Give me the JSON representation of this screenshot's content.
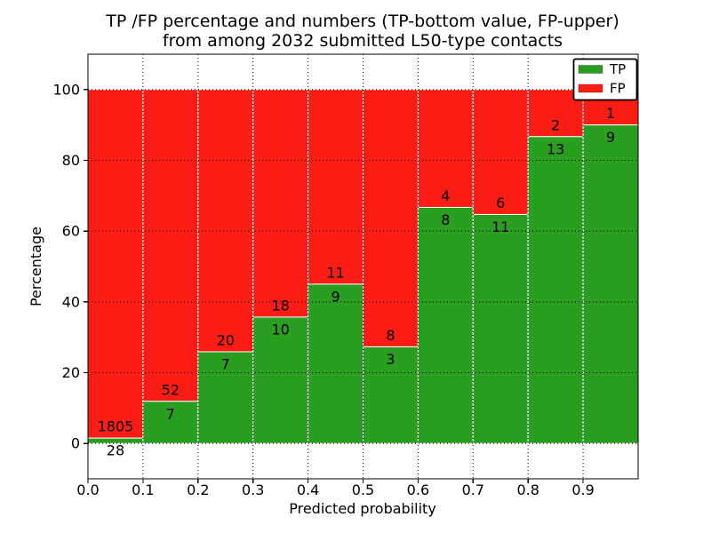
{
  "chart_data": {
    "type": "bar",
    "stacked": true,
    "title_lines": [
      "TP /FP percentage and numbers (TP-bottom value, FP-upper)",
      "from among 2032 submitted L50-type contacts"
    ],
    "xlabel": "Predicted probability",
    "ylabel": "Percentage",
    "xlim": [
      0.0,
      1.0
    ],
    "ylim": [
      -10,
      110
    ],
    "x_tick_labels": [
      "0.0",
      "0.1",
      "0.2",
      "0.3",
      "0.4",
      "0.5",
      "0.6",
      "0.7",
      "0.8",
      "0.9"
    ],
    "y_tick_values": [
      0,
      20,
      40,
      60,
      80,
      100
    ],
    "grid": "dotted-black",
    "total_contacts": 2032,
    "legend": {
      "position": "upper right",
      "entries": [
        {
          "label": "TP",
          "color": "#2a9e20"
        },
        {
          "label": "FP",
          "color": "#fb1c14"
        }
      ]
    },
    "series_colors": {
      "tp": "#2a9e20",
      "fp": "#fb1c14"
    },
    "bar_edge_color": "#ffffff",
    "bins": [
      {
        "x0": 0.0,
        "x1": 0.1,
        "tp": 28,
        "fp": 1805,
        "tp_percent": 1.5
      },
      {
        "x0": 0.1,
        "x1": 0.2,
        "tp": 7,
        "fp": 52,
        "tp_percent": 11.9
      },
      {
        "x0": 0.2,
        "x1": 0.3,
        "tp": 7,
        "fp": 20,
        "tp_percent": 25.9
      },
      {
        "x0": 0.3,
        "x1": 0.4,
        "tp": 10,
        "fp": 18,
        "tp_percent": 35.7
      },
      {
        "x0": 0.4,
        "x1": 0.5,
        "tp": 9,
        "fp": 11,
        "tp_percent": 45.0
      },
      {
        "x0": 0.5,
        "x1": 0.6,
        "tp": 3,
        "fp": 8,
        "tp_percent": 27.3
      },
      {
        "x0": 0.6,
        "x1": 0.7,
        "tp": 8,
        "fp": 4,
        "tp_percent": 66.7
      },
      {
        "x0": 0.7,
        "x1": 0.8,
        "tp": 11,
        "fp": 6,
        "tp_percent": 64.7
      },
      {
        "x0": 0.8,
        "x1": 0.9,
        "tp": 13,
        "fp": 2,
        "tp_percent": 86.7
      },
      {
        "x0": 0.9,
        "x1": 1.0,
        "tp": 9,
        "fp": 1,
        "tp_percent": 90.0
      }
    ]
  }
}
